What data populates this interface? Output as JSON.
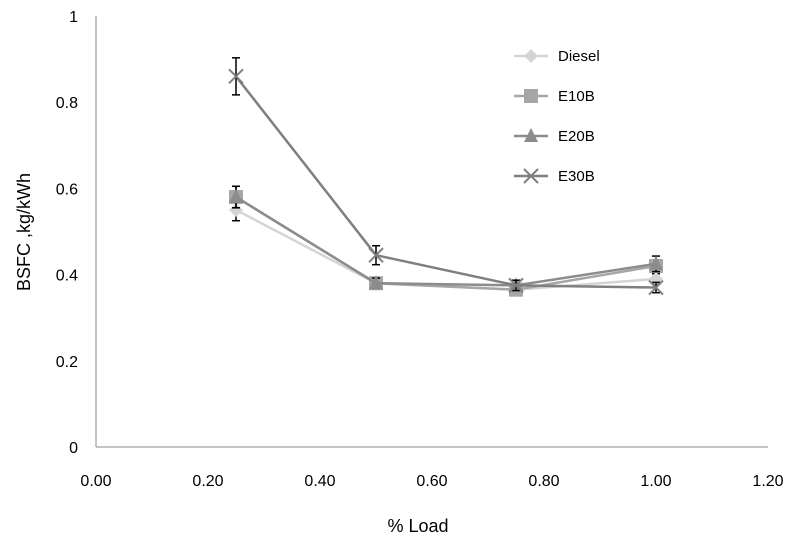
{
  "chart_data": {
    "type": "line",
    "title": "",
    "xlabel": "% Load",
    "ylabel": "BSFC ,kg/kWh",
    "xlim": [
      0,
      1.2
    ],
    "ylim": [
      0,
      1
    ],
    "x_ticks": [
      "0.00",
      "0.20",
      "0.40",
      "0.60",
      "0.80",
      "1.00",
      "1.20"
    ],
    "y_ticks": [
      "0",
      "0.2",
      "0.4",
      "0.6",
      "0.8",
      "1"
    ],
    "x_tick_values": [
      0,
      0.2,
      0.4,
      0.6,
      0.8,
      1.0,
      1.2
    ],
    "y_tick_values": [
      0,
      0.2,
      0.4,
      0.6,
      0.8,
      1.0
    ],
    "grid": false,
    "legend_position": "top-right",
    "x": [
      0.25,
      0.5,
      0.75,
      1.0
    ],
    "series": [
      {
        "name": "Diesel",
        "marker": "diamond",
        "color": "#d4d4d4",
        "values": [
          0.55,
          0.38,
          0.365,
          0.39
        ],
        "errors": [
          0.025,
          0.012,
          0.012,
          0.012
        ]
      },
      {
        "name": "E10B",
        "marker": "square",
        "color": "#a6a6a6",
        "values": [
          0.58,
          0.38,
          0.365,
          0.42
        ],
        "errors": [
          0.025,
          0.012,
          0.012,
          0.012
        ]
      },
      {
        "name": "E20B",
        "marker": "triangle",
        "color": "#8c8c8c",
        "values": [
          0.58,
          0.38,
          0.375,
          0.425
        ],
        "errors": [
          0.025,
          0.012,
          0.012,
          0.018
        ]
      },
      {
        "name": "E30B",
        "marker": "x",
        "color": "#7f7f7f",
        "values": [
          0.86,
          0.445,
          0.375,
          0.37
        ],
        "errors": [
          0.043,
          0.022,
          0.012,
          0.012
        ]
      }
    ]
  }
}
